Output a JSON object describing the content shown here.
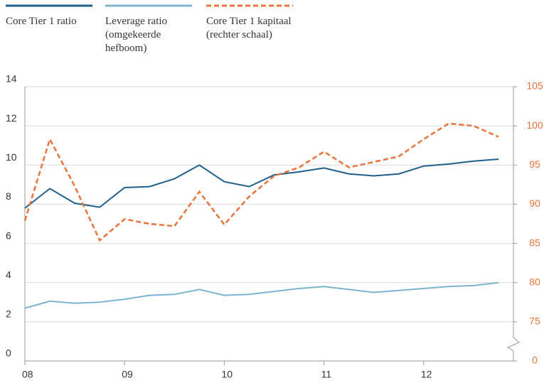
{
  "chart_data": {
    "type": "line",
    "x": [
      2008,
      2008.25,
      2008.5,
      2008.75,
      2009,
      2009.25,
      2009.5,
      2009.75,
      2010,
      2010.25,
      2010.5,
      2010.75,
      2011,
      2011.25,
      2011.5,
      2011.75,
      2012,
      2012.25,
      2012.5,
      2012.75
    ],
    "xlim": [
      2008,
      2012.9
    ],
    "xticks": [
      {
        "value": 2008,
        "label": "08"
      },
      {
        "value": 2009,
        "label": "09"
      },
      {
        "value": 2010,
        "label": "10"
      },
      {
        "value": 2011,
        "label": "11"
      },
      {
        "value": 2012,
        "label": "12"
      }
    ],
    "ylim": [
      0,
      14
    ],
    "yticks": [
      0,
      2,
      4,
      6,
      8,
      10,
      12,
      14
    ],
    "y2lim": [
      75,
      105
    ],
    "y2ticks": [
      0,
      75,
      80,
      85,
      90,
      95,
      100,
      105
    ],
    "y2_break": true,
    "grid": true,
    "series": [
      {
        "name": "Core Tier 1 ratio",
        "color": "#1f5f8b",
        "values": [
          7.8,
          8.8,
          8.05,
          7.85,
          8.85,
          8.9,
          9.3,
          10.0,
          9.15,
          8.9,
          9.5,
          9.65,
          9.85,
          9.55,
          9.45,
          9.55,
          9.95,
          10.05,
          10.2,
          10.3
        ]
      },
      {
        "name": "Leverage ratio (omgekeerde hefboom)",
        "color": "#7db4cf",
        "values": [
          2.7,
          3.05,
          2.95,
          3.0,
          3.15,
          3.35,
          3.4,
          3.65,
          3.35,
          3.4,
          3.55,
          3.7,
          3.8,
          3.65,
          3.5,
          3.6,
          3.7,
          3.8,
          3.85,
          4.0
        ]
      },
      {
        "name": "Core Tier 1 kapitaal (rechter schaal)",
        "color": "#e8743b",
        "axis": "y2",
        "dashed": true,
        "values": [
          87.9,
          98.3,
          92.3,
          85.4,
          88.1,
          87.5,
          87.2,
          91.6,
          87.4,
          91.0,
          93.6,
          94.7,
          96.7,
          94.7,
          95.4,
          96.1,
          98.3,
          100.3,
          100.0,
          98.6
        ]
      }
    ]
  }
}
